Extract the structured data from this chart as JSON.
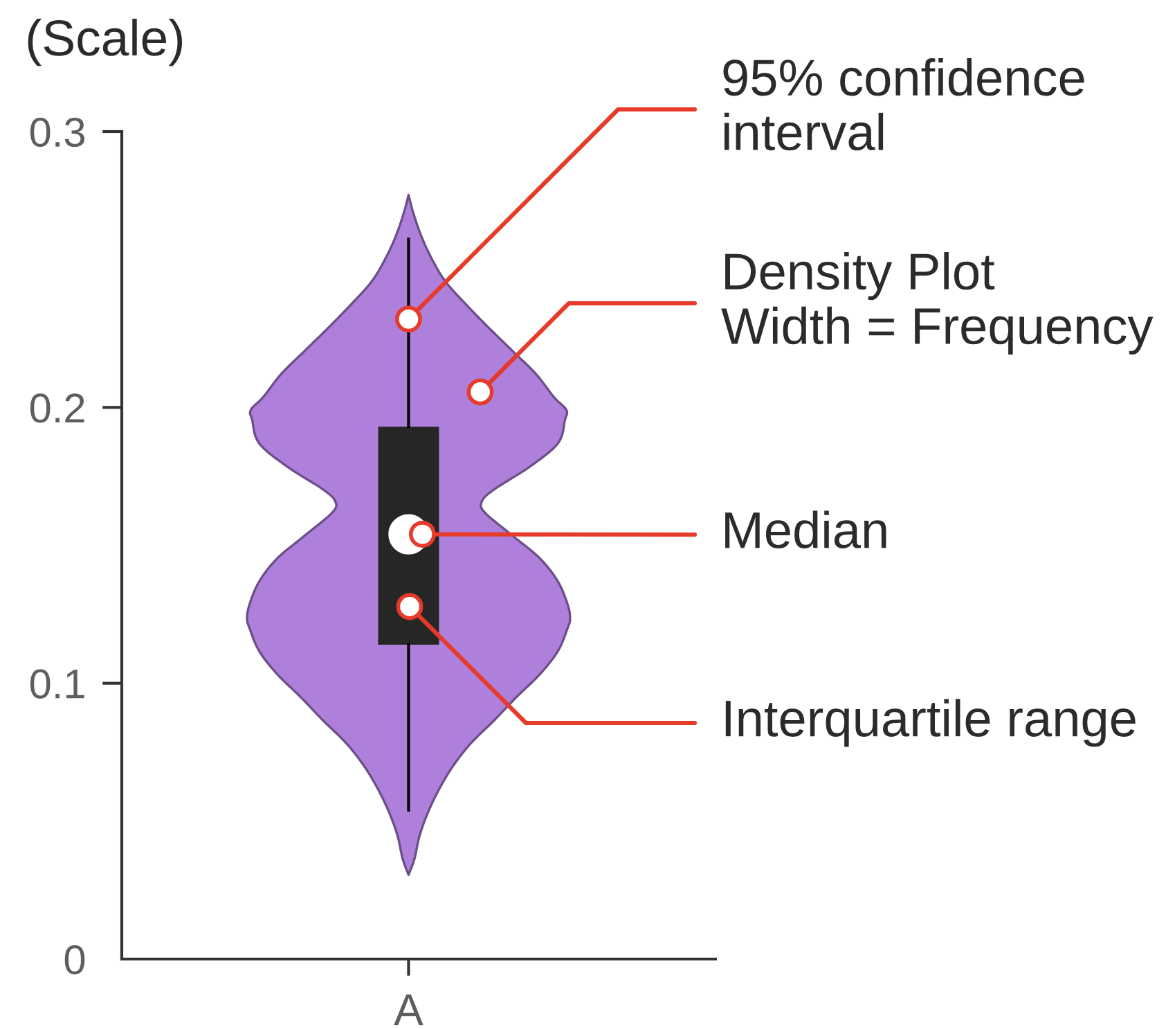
{
  "chart_data": {
    "type": "box",
    "categories": [
      "A"
    ],
    "ylabel": "(Scale)",
    "ylim": [
      0,
      0.3
    ],
    "yticks": [
      0,
      0.1,
      0.2,
      0.3
    ],
    "series": [
      {
        "type": "box",
        "color": "#262626",
        "boxes": [
          {
            "low": 0.054,
            "q1": 0.114,
            "median": 0.154,
            "q3": 0.193,
            "high": 0.261
          }
        ]
      }
    ],
    "annotations": [
      {
        "text": "95% confidence\ninterval",
        "x": "A",
        "y": 0.232
      },
      "Density Plot\nWidth = Frequency",
      {
        "text": "Median",
        "x": "A",
        "y": 0.154
      },
      "Interquartile range"
    ]
  }
}
